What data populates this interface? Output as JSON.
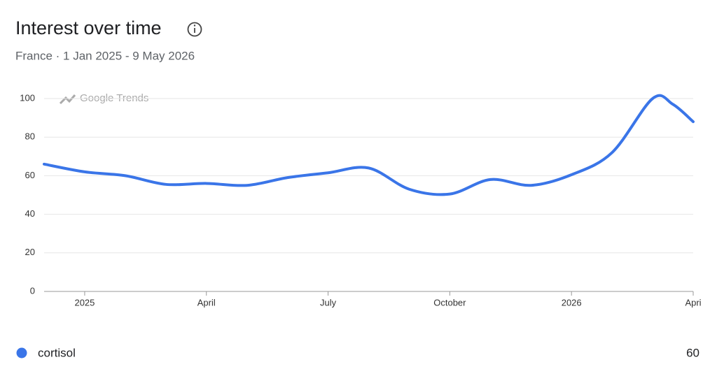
{
  "chart_data": {
    "type": "line",
    "title": "Interest over time",
    "subtitle": "France · 1 Jan 2025 - 9 May 2026",
    "watermark": "Google Trends",
    "x": [
      -1,
      0,
      1,
      2,
      3,
      4,
      5,
      6,
      7,
      8,
      9,
      10,
      11,
      12,
      13,
      14,
      14.5,
      15
    ],
    "series": [
      {
        "name": "cortisol",
        "color": "#3a75e8",
        "values": [
          66,
          62,
          60,
          55.5,
          56,
          55,
          59,
          61.5,
          64,
          53,
          50.5,
          58,
          55,
          60.5,
          72,
          100,
          97,
          88
        ]
      }
    ],
    "legend_value": 60,
    "xlim": [
      -1,
      15
    ],
    "xticks": [
      {
        "value": 0,
        "label": "2025"
      },
      {
        "value": 3,
        "label": "April"
      },
      {
        "value": 6,
        "label": "July"
      },
      {
        "value": 9,
        "label": "October"
      },
      {
        "value": 12,
        "label": "2026"
      },
      {
        "value": 15,
        "label": "Apri"
      }
    ],
    "ylim": [
      0,
      100
    ],
    "yticks": [
      0,
      20,
      40,
      60,
      80,
      100
    ],
    "grid": true
  }
}
